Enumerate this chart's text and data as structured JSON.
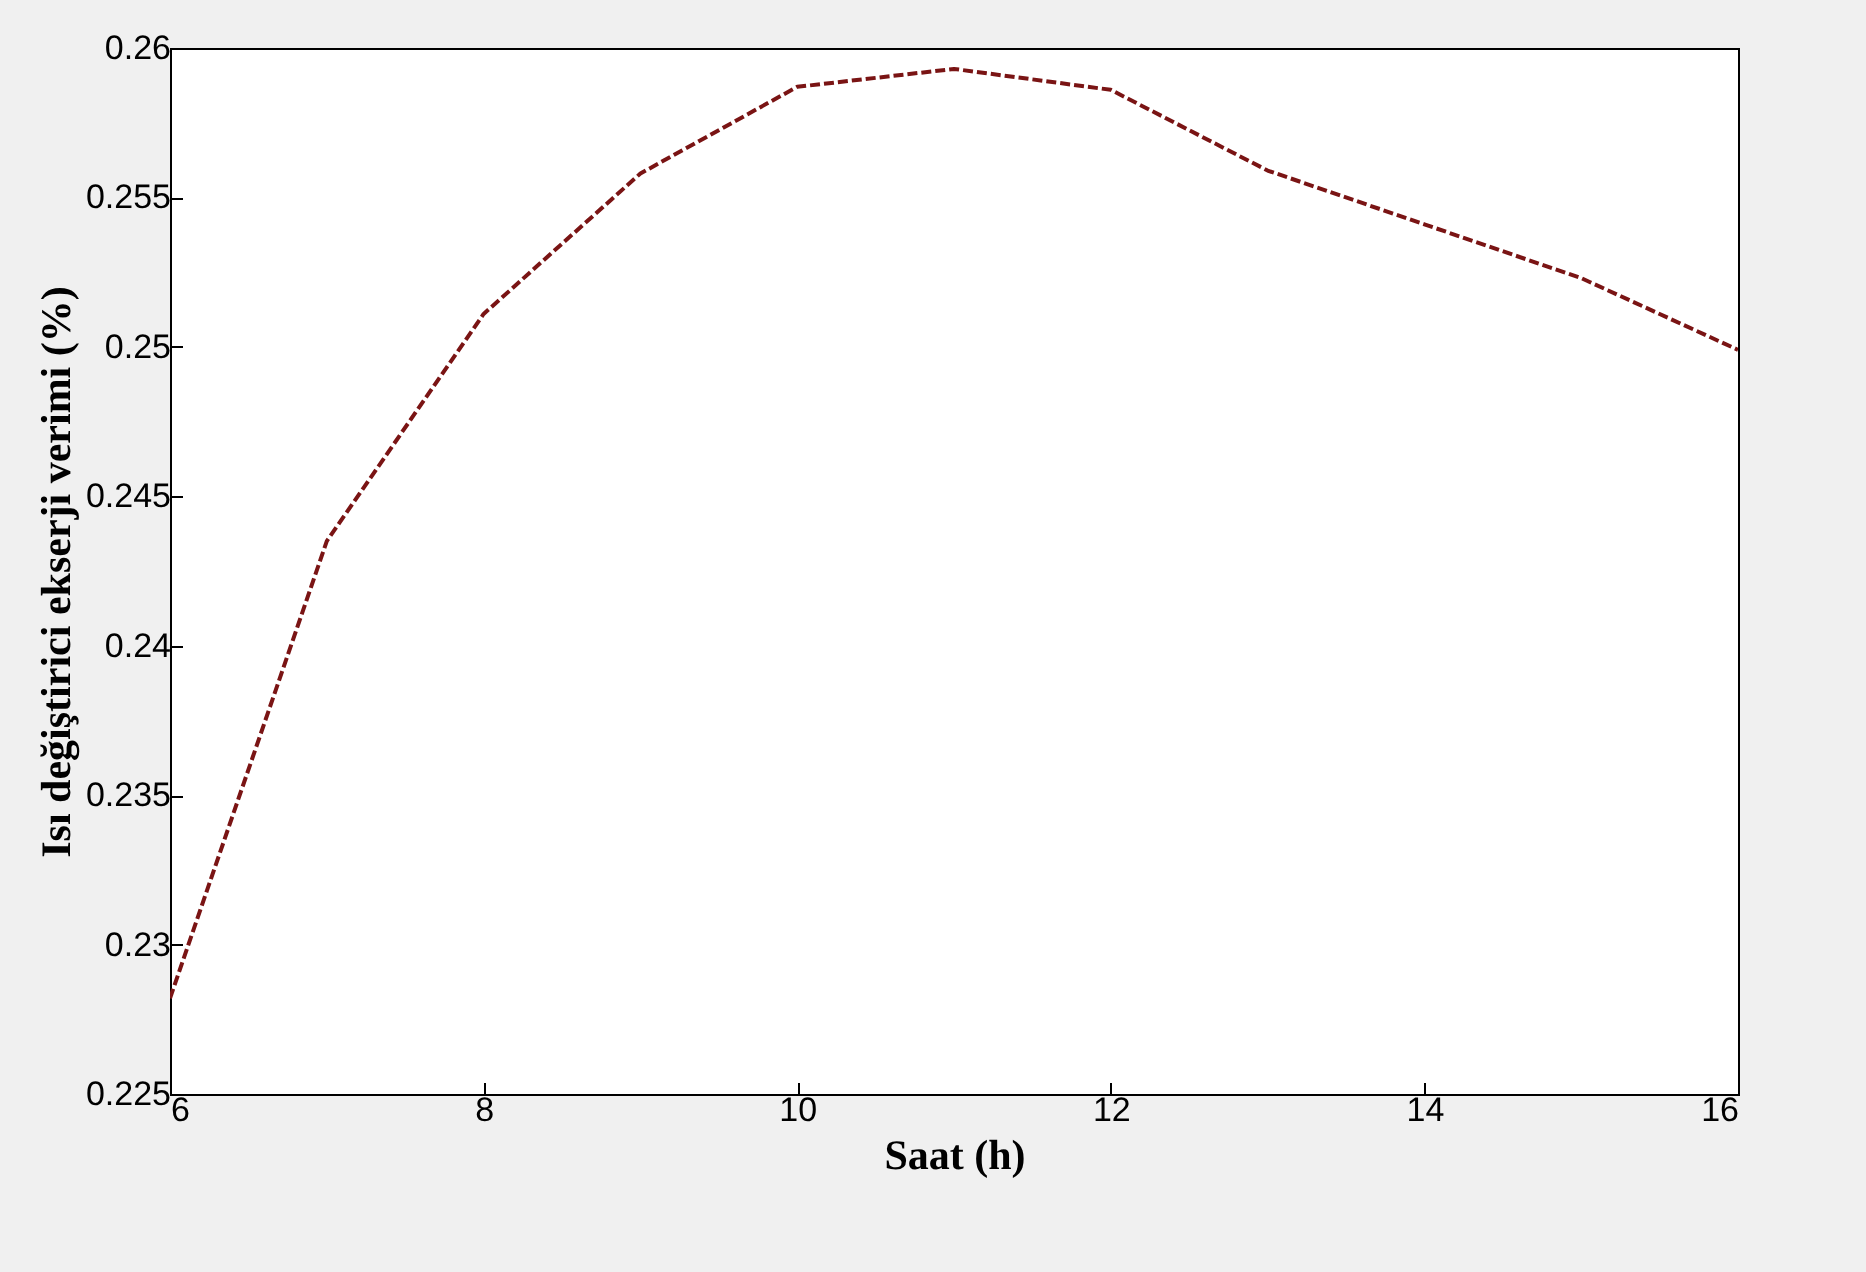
{
  "chart_data": {
    "type": "line",
    "xlabel": "Saat (h)",
    "ylabel": "Isı değiştirici ekserji verimi (%)",
    "x": [
      6,
      7,
      8,
      9,
      10,
      11,
      12,
      13,
      14,
      15,
      16
    ],
    "series": [
      {
        "color": "#7a1414",
        "values": [
          0.2282,
          0.2435,
          0.2511,
          0.2558,
          0.2587,
          0.2593,
          0.2586,
          0.2559,
          0.2541,
          0.2523,
          0.2499
        ]
      }
    ],
    "xlim": [
      6,
      16
    ],
    "xticks": [
      6,
      8,
      10,
      12,
      14,
      16
    ],
    "ylim": [
      0.225,
      0.26
    ],
    "yticks": [
      0.225,
      0.23,
      0.235,
      0.24,
      0.245,
      0.25,
      0.255,
      0.26
    ],
    "grid": false,
    "marker": "none",
    "line_style": "dashed"
  }
}
